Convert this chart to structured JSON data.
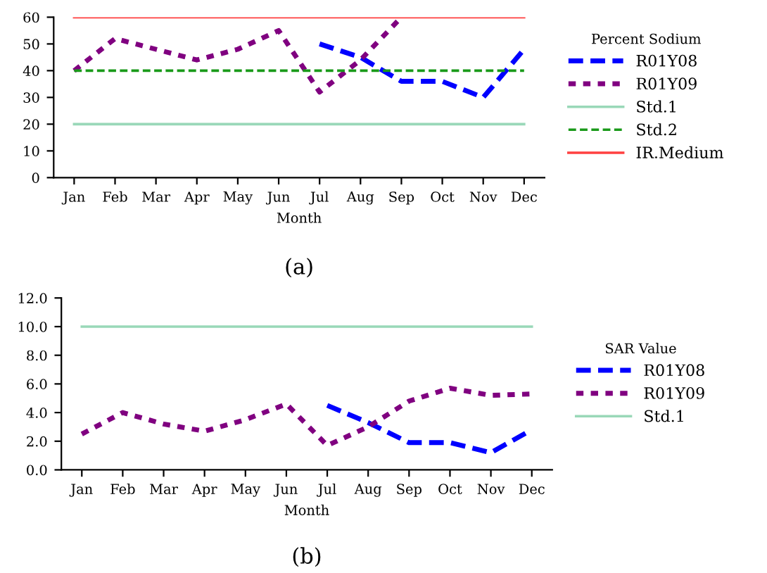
{
  "chart_data": [
    {
      "type": "line",
      "legend_title": "Percent Sodium",
      "xlabel": "Month",
      "categories": [
        "Jan",
        "Feb",
        "Mar",
        "Apr",
        "May",
        "Jun",
        "Jul",
        "Aug",
        "Sep",
        "Oct",
        "Nov",
        "Dec"
      ],
      "ylim": [
        0,
        60
      ],
      "yticks": [
        0,
        10,
        20,
        30,
        40,
        50,
        60
      ],
      "grid": false,
      "legend": "right",
      "annotations": [
        "(a)"
      ],
      "series": [
        {
          "name": "R01Y08",
          "color": "#0000ff",
          "line_style": "dashed",
          "values": [
            null,
            null,
            null,
            null,
            null,
            null,
            50,
            45,
            36,
            36,
            30,
            48
          ]
        },
        {
          "name": "R01Y09",
          "color": "#800080",
          "line_style": "dotted",
          "values": [
            40,
            52,
            48,
            44,
            48,
            55,
            32,
            44,
            60,
            null,
            null,
            null
          ]
        },
        {
          "name": "Std.1",
          "color": "#99d8b8",
          "line_style": "solid",
          "values": [
            20,
            20,
            20,
            20,
            20,
            20,
            20,
            20,
            20,
            20,
            20,
            20
          ]
        },
        {
          "name": "Std.2",
          "color": "#1a9a1a",
          "line_style": "dashed",
          "values": [
            40,
            40,
            40,
            40,
            40,
            40,
            40,
            40,
            40,
            40,
            40,
            40
          ]
        },
        {
          "name": "IR.Medium",
          "color": "#ff4040",
          "line_style": "solid",
          "values": [
            60,
            60,
            60,
            60,
            60,
            60,
            60,
            60,
            60,
            60,
            60,
            60
          ]
        }
      ]
    },
    {
      "type": "line",
      "legend_title": "SAR Value",
      "xlabel": "Month",
      "categories": [
        "Jan",
        "Feb",
        "Mar",
        "Apr",
        "May",
        "Jun",
        "Jul",
        "Aug",
        "Sep",
        "Oct",
        "Nov",
        "Dec"
      ],
      "ylim": [
        0,
        12
      ],
      "yticks": [
        {
          "value": 0,
          "label": "0.0"
        },
        {
          "value": 2,
          "label": "2.0"
        },
        {
          "value": 4,
          "label": "4.0"
        },
        {
          "value": 6,
          "label": "6.0"
        },
        {
          "value": 8,
          "label": "8.0"
        },
        {
          "value": 10,
          "label": "10.0"
        },
        {
          "value": 12,
          "label": "12.0"
        }
      ],
      "grid": false,
      "legend": "right",
      "annotations": [
        "(b)"
      ],
      "series": [
        {
          "name": "R01Y08",
          "color": "#0000ff",
          "line_style": "dashed",
          "values": [
            null,
            null,
            null,
            null,
            null,
            null,
            4.5,
            3.3,
            1.9,
            1.9,
            1.2,
            2.8
          ]
        },
        {
          "name": "R01Y09",
          "color": "#800080",
          "line_style": "dotted",
          "values": [
            2.5,
            4.0,
            3.2,
            2.7,
            3.5,
            4.6,
            1.7,
            3.0,
            4.8,
            5.7,
            5.2,
            5.3
          ]
        },
        {
          "name": "Std.1",
          "color": "#99d8b8",
          "line_style": "solid",
          "values": [
            10,
            10,
            10,
            10,
            10,
            10,
            10,
            10,
            10,
            10,
            10,
            10
          ]
        }
      ]
    }
  ]
}
